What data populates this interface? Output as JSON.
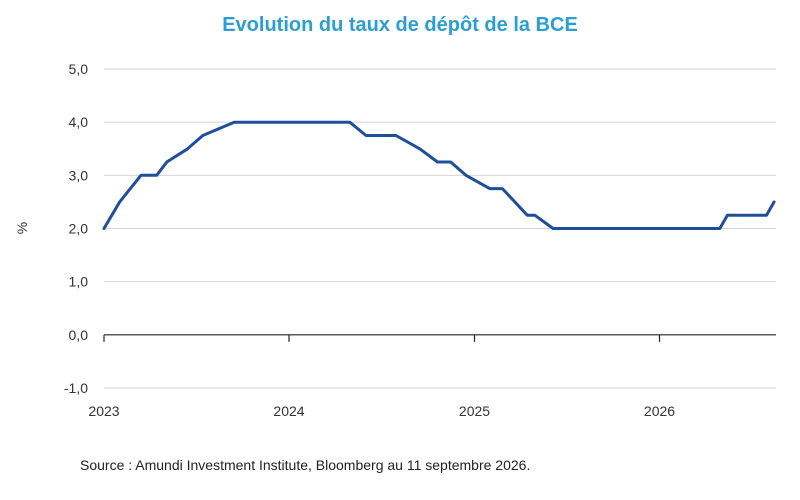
{
  "chart_data": {
    "type": "line",
    "title": "Evolution du taux de dépôt de la BCE",
    "ylabel": "%",
    "xlabel": "",
    "ylim": [
      -1.0,
      5.0
    ],
    "yticks": [
      5.0,
      4.0,
      3.0,
      2.0,
      1.0,
      0.0,
      -1.0
    ],
    "ytick_labels": [
      "5,0",
      "4,0",
      "3,0",
      "2,0",
      "1,0",
      "0,0",
      "-1,0"
    ],
    "xlim": [
      "2023-01-01",
      "2026-08-15"
    ],
    "xticks": [
      "2023-01-01",
      "2024-01-01",
      "2025-01-01",
      "2026-01-01"
    ],
    "xtick_labels": [
      "2023",
      "2024",
      "2025",
      "2026"
    ],
    "grid": "horizontal",
    "color": "#1f4e9c",
    "series": [
      {
        "x": [
          "2023-01-01",
          "2023-02-01",
          "2023-03-15",
          "2023-04-15",
          "2023-05-05",
          "2023-06-15",
          "2023-07-15",
          "2023-09-15",
          "2024-04-30",
          "2024-06-01",
          "2024-07-30",
          "2024-09-15",
          "2024-10-20",
          "2024-11-15",
          "2024-12-15",
          "2025-01-31",
          "2025-02-25",
          "2025-04-15",
          "2025-04-30",
          "2025-06-05",
          "2025-07-15",
          "2026-04-30",
          "2026-05-15",
          "2026-07-31",
          "2026-08-15"
        ],
        "y": [
          2.0,
          2.5,
          3.0,
          3.0,
          3.25,
          3.5,
          3.75,
          4.0,
          4.0,
          3.75,
          3.75,
          3.5,
          3.25,
          3.25,
          3.0,
          2.75,
          2.75,
          2.25,
          2.25,
          2.0,
          2.0,
          2.0,
          2.25,
          2.25,
          2.5
        ]
      }
    ]
  },
  "source": "Source : Amundi Investment Institute,  Bloomberg au 11 septembre 2026."
}
